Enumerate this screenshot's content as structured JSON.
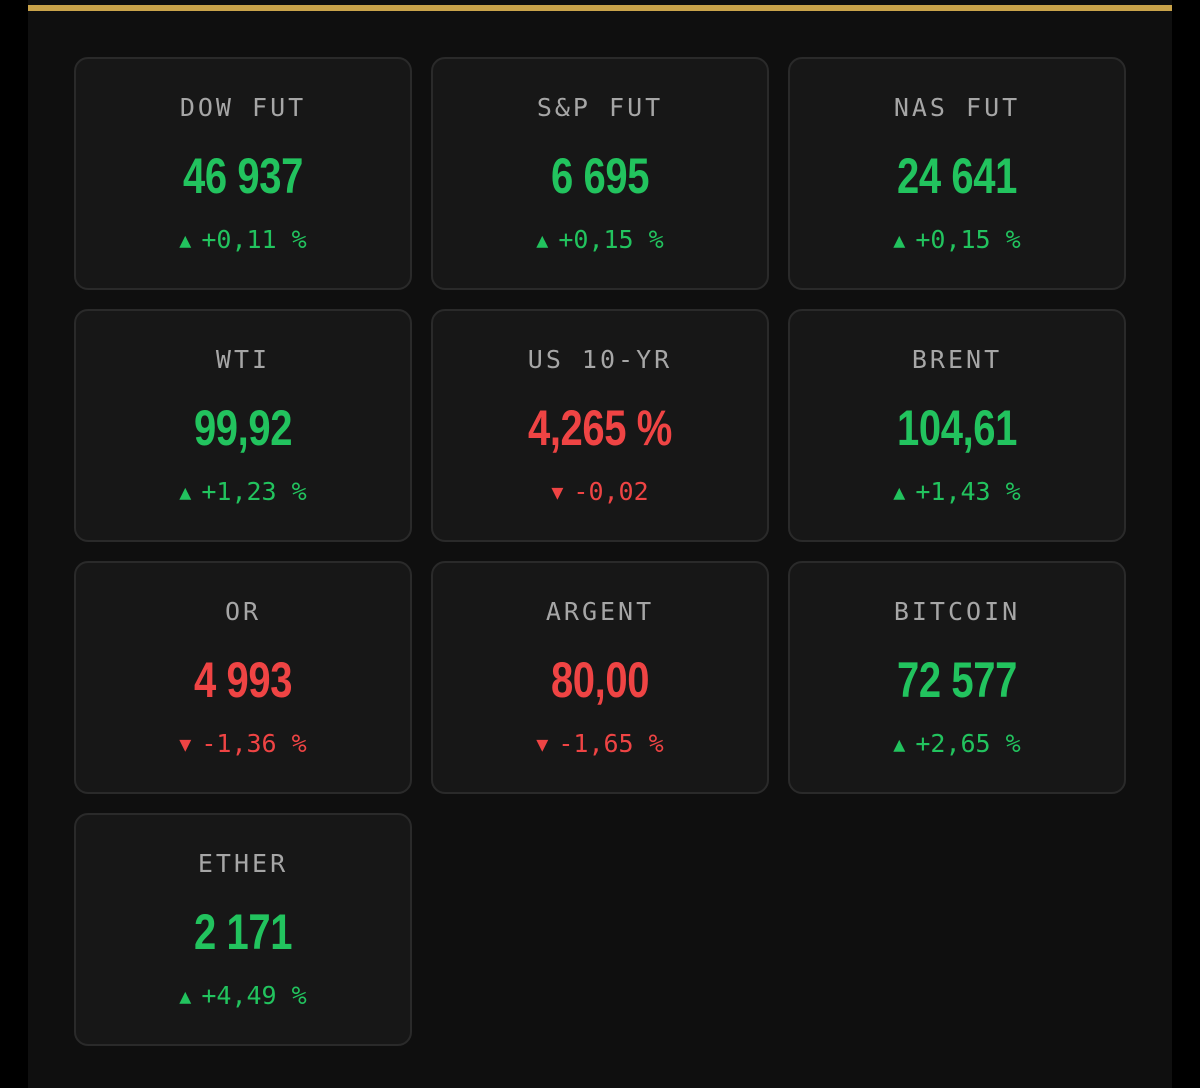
{
  "colors": {
    "background": "#0f0f0f",
    "card": "#171717",
    "card_border": "#2a2a2a",
    "accent_rule": "#c9a34a",
    "up": "#22c35e",
    "down": "#ef4444",
    "label": "#a6a6a6"
  },
  "quotes": [
    {
      "label": "DOW FUT",
      "value": "46 937",
      "arrow": "▲",
      "change": "+0,11 %",
      "direction": "up"
    },
    {
      "label": "S&P FUT",
      "value": "6 695",
      "arrow": "▲",
      "change": "+0,15 %",
      "direction": "up"
    },
    {
      "label": "NAS FUT",
      "value": "24 641",
      "arrow": "▲",
      "change": "+0,15 %",
      "direction": "up"
    },
    {
      "label": "WTI",
      "value": "99,92",
      "arrow": "▲",
      "change": "+1,23 %",
      "direction": "up"
    },
    {
      "label": "US 10-YR",
      "value": "4,265 %",
      "arrow": "▼",
      "change": "-0,02",
      "direction": "down"
    },
    {
      "label": "BRENT",
      "value": "104,61",
      "arrow": "▲",
      "change": "+1,43 %",
      "direction": "up"
    },
    {
      "label": "OR",
      "value": "4 993",
      "arrow": "▼",
      "change": "-1,36 %",
      "direction": "down"
    },
    {
      "label": "ARGENT",
      "value": "80,00",
      "arrow": "▼",
      "change": "-1,65 %",
      "direction": "down"
    },
    {
      "label": "BITCOIN",
      "value": "72 577",
      "arrow": "▲",
      "change": "+2,65 %",
      "direction": "up"
    },
    {
      "label": "ETHER",
      "value": "2 171",
      "arrow": "▲",
      "change": "+4,49 %",
      "direction": "up"
    }
  ]
}
